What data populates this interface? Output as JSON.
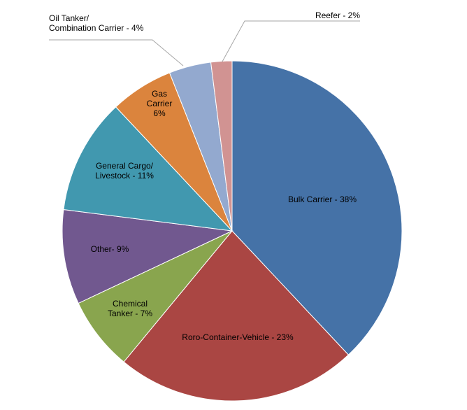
{
  "chart_data": {
    "type": "pie",
    "title": "",
    "slices": [
      {
        "label": "Bulk Carrier - 38%",
        "value": 38,
        "color": "#4572a7"
      },
      {
        "label": "Roro-Container-Vehicle - 23%",
        "value": 23,
        "color": "#aa4643"
      },
      {
        "label": "Chemical\nTanker - 7%",
        "value": 7,
        "color": "#89a54e"
      },
      {
        "label": "Other- 9%",
        "value": 9,
        "color": "#71588f"
      },
      {
        "label": "General Cargo/\nLivestock  - 11%",
        "value": 11,
        "color": "#4198af"
      },
      {
        "label": "Gas\nCarrier\n6%",
        "value": 6,
        "color": "#db843d"
      },
      {
        "label": "Oil Tanker/\nCombination Carrier - 4%",
        "value": 4,
        "color": "#93a9cf"
      },
      {
        "label": "Reefer - 2%",
        "value": 2,
        "color": "#d19392"
      }
    ]
  }
}
